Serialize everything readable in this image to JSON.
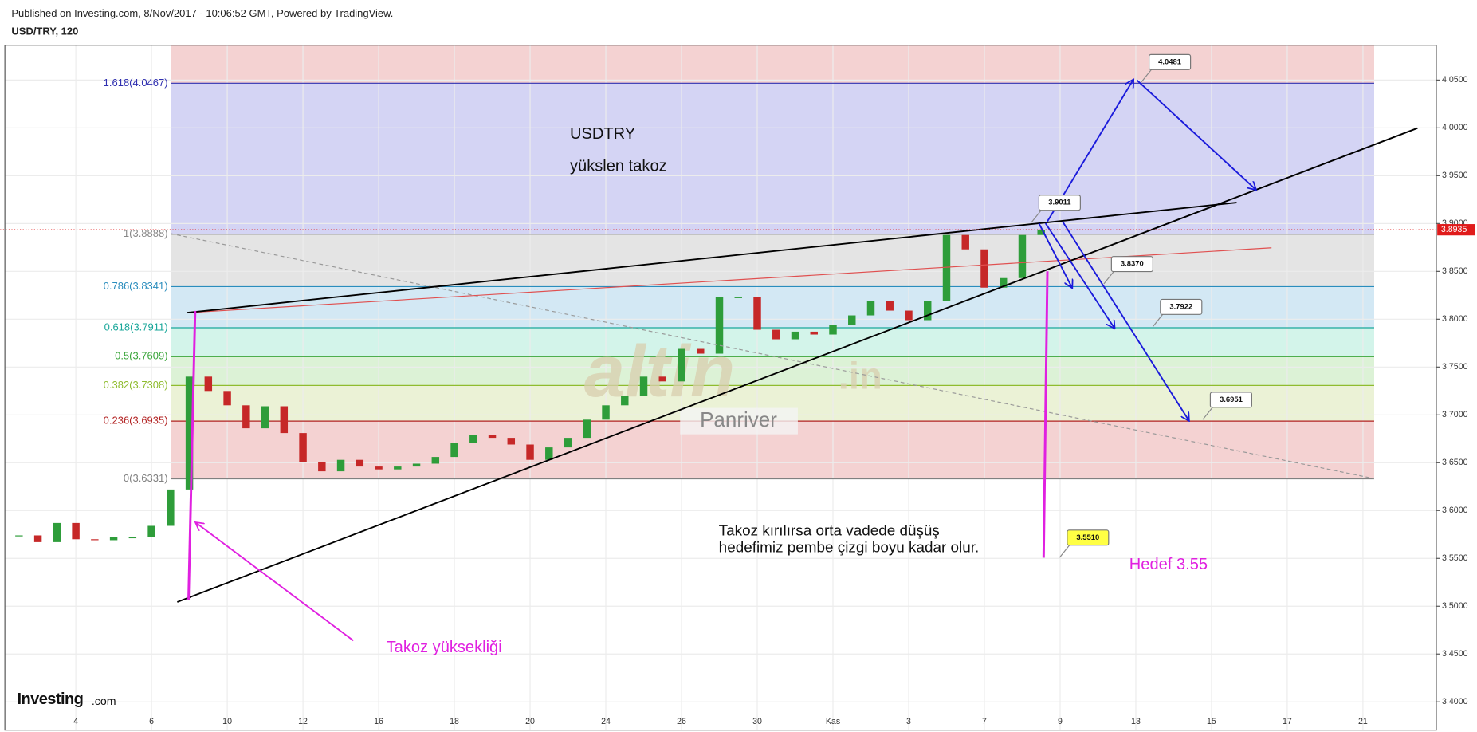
{
  "chart_data": {
    "type": "candlestick",
    "header": "Published on Investing.com, 8/Nov/2017 - 10:06:52 GMT, Powered by TradingView.",
    "symbol": "USD/TRY, 120",
    "categories": [
      null,
      null,
      null,
      "4",
      null,
      null,
      null,
      "6",
      null,
      null,
      null,
      "10",
      null,
      null,
      null,
      "12",
      null,
      null,
      null,
      "16",
      null,
      null,
      null,
      "18",
      null,
      null,
      null,
      "20",
      null,
      null,
      null,
      "24",
      null,
      null,
      null,
      "26",
      null,
      null,
      null,
      "30",
      null,
      null,
      null,
      "Kas",
      null,
      null,
      null,
      "3",
      null,
      null,
      null,
      "7",
      null,
      null,
      null,
      "9",
      null,
      null,
      null,
      "13",
      null,
      null,
      null,
      "15",
      null,
      null,
      null,
      "17",
      null,
      null,
      null,
      "21",
      null,
      null,
      null
    ],
    "values": [
      3.574,
      3.567,
      3.587,
      3.57,
      3.569,
      3.572,
      3.572,
      3.584,
      3.622,
      3.74,
      3.725,
      3.71,
      3.686,
      3.709,
      3.681,
      3.651,
      3.641,
      3.653,
      3.646,
      3.643,
      3.646,
      3.649,
      3.656,
      3.671,
      3.679,
      3.676,
      3.669,
      3.653,
      3.666,
      3.676,
      3.695,
      3.71,
      3.72,
      3.74,
      3.735,
      3.769,
      3.764,
      3.823,
      3.823,
      3.789,
      3.779,
      3.787,
      3.784,
      3.794,
      3.804,
      3.819,
      3.809,
      3.799,
      3.819,
      3.888,
      3.873,
      3.833,
      3.843,
      3.888,
      3.8935,
      null,
      null,
      null,
      null,
      null,
      null,
      null,
      null,
      null,
      null,
      null,
      null,
      null,
      null,
      null,
      null,
      null,
      null,
      null,
      null
    ],
    "up_color": "#2e9d3a",
    "down_color": "#c62828",
    "ylim": [
      3.3705,
      4.0864
    ],
    "yticks": [
      {
        "value": 3.4,
        "label": "3.4000"
      },
      {
        "value": 3.45,
        "label": "3.4500"
      },
      {
        "value": 3.5,
        "label": "3.5000"
      },
      {
        "value": 3.55,
        "label": "3.5500"
      },
      {
        "value": 3.6,
        "label": "3.6000"
      },
      {
        "value": 3.65,
        "label": "3.6500"
      },
      {
        "value": 3.7,
        "label": "3.7000"
      },
      {
        "value": 3.75,
        "label": "3.7500"
      },
      {
        "value": 3.8,
        "label": "3.8000"
      },
      {
        "value": 3.85,
        "label": "3.8500"
      },
      {
        "value": 3.9,
        "label": "3.9000"
      },
      {
        "value": 3.95,
        "label": "3.9500"
      },
      {
        "value": 4.0,
        "label": "4.0000"
      },
      {
        "value": 4.05,
        "label": "4.0500"
      }
    ],
    "grid": true,
    "last_price": {
      "value": 3.8935,
      "label": "3.8935",
      "color": "#e01b1b"
    },
    "fib_levels": [
      {
        "label": "0(3.6331)",
        "value": 3.6331,
        "color": "#808080",
        "band": "#f4d2d2"
      },
      {
        "label": "0.236(3.6935)",
        "value": 3.6935,
        "color": "#b22222",
        "band": "#ebf2d6"
      },
      {
        "label": "0.382(3.7308)",
        "value": 3.7308,
        "color": "#8fbc2f",
        "band": "#dcf2d6"
      },
      {
        "label": "0.5(3.7609)",
        "value": 3.7609,
        "color": "#3aa53a",
        "band": "#d3f4ea"
      },
      {
        "label": "0.618(3.7911)",
        "value": 3.7911,
        "color": "#1aa79a",
        "band": "#d3e8f4"
      },
      {
        "label": "0.786(3.8341)",
        "value": 3.8341,
        "color": "#2a8dbd",
        "band": "#e4e4e4"
      },
      {
        "label": "1(3.8888)",
        "value": 3.8888,
        "color": "#888888",
        "band": "#d4d4f4"
      },
      {
        "label": "1.618(4.0467)",
        "value": 4.0467,
        "color": "#3030b0",
        "band": "#f4d2d2"
      }
    ],
    "callouts": [
      {
        "label": "4.0481",
        "value": 4.0481,
        "color": "#ffffff"
      },
      {
        "label": "3.9011",
        "value": 3.9011,
        "color": "#ffffff"
      },
      {
        "label": "3.8370",
        "value": 3.837,
        "color": "#ffffff"
      },
      {
        "label": "3.7922",
        "value": 3.7922,
        "color": "#ffffff"
      },
      {
        "label": "3.6951",
        "value": 3.6951,
        "color": "#ffffff"
      },
      {
        "label": "3.5510",
        "value": 3.551,
        "color": "#ffff44"
      }
    ],
    "annotations": {
      "name": "USDTRY",
      "pattern": "yükslen takoz",
      "note_line1": "Takoz kırılırsa orta vadede düşüş",
      "note_line2": "hedefimiz pembe çizgi boyu kadar olur.",
      "target": "Hedef 3.55",
      "height": "Takoz yüksekliği",
      "watermark": "altin",
      "watermark_suffix": ".in",
      "watermark_sub": "Panriver",
      "logo": "Investing",
      "logo_suffix": ".com"
    }
  }
}
